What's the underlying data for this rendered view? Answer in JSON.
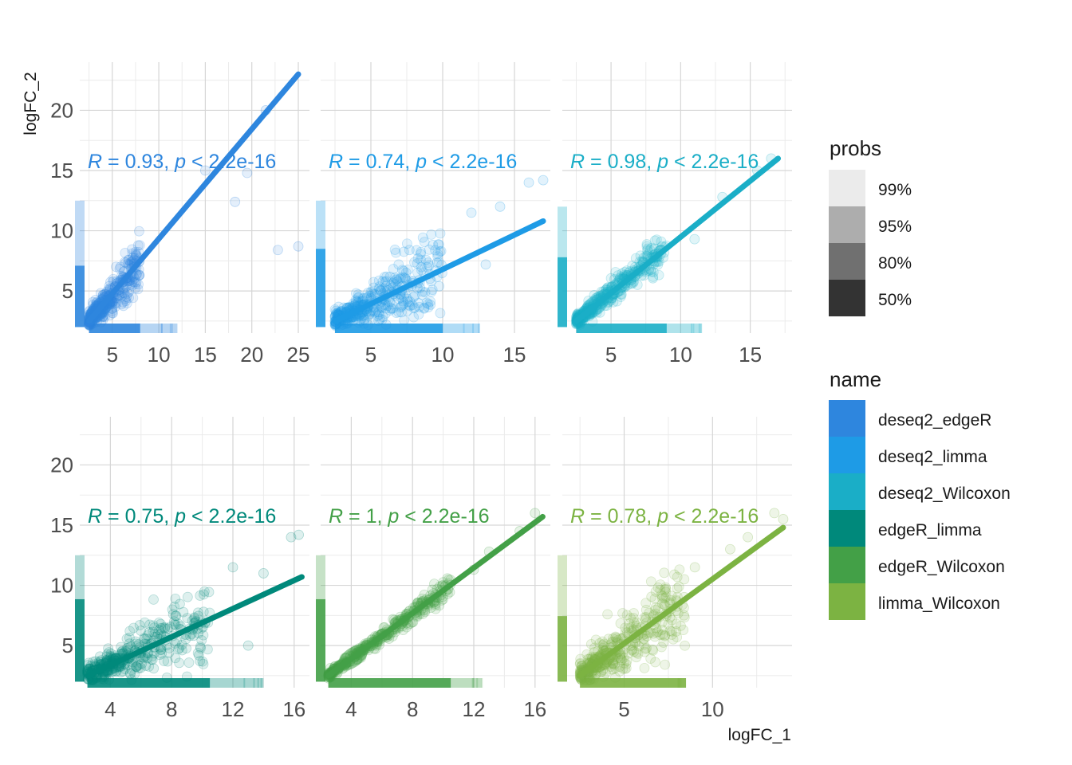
{
  "figure": {
    "x_axis_label": "logFC_1",
    "y_axis_label": "logFC_2"
  },
  "chart_data": {
    "type": "scatter",
    "facets": [
      {
        "name": "deseq2_edgeR",
        "color": "#2E86DE",
        "annotation": {
          "r_symbol": "R",
          "r_value": "0.93",
          "p_symbol": "p",
          "p_value": "2.2e-16"
        },
        "xlim": [
          1.5,
          26.2
        ],
        "ylim": [
          1.5,
          24.0
        ],
        "x_ticks": [
          5,
          10,
          15,
          20,
          25
        ],
        "y_ticks": [
          5,
          10,
          15,
          20
        ],
        "x_tick_labels": [
          "5",
          "10",
          "15",
          "20",
          "25"
        ],
        "fit_line": {
          "x": [
            2.5,
            25.0
          ],
          "y": [
            2.5,
            23.0
          ]
        },
        "cluster": {
          "x_end": 8.0,
          "slope": 0.88,
          "spread": 0.9
        },
        "outliers": [
          [
            22.8,
            8.4
          ],
          [
            25.0,
            8.7
          ],
          [
            18.2,
            12.4
          ],
          [
            19.5,
            14.8
          ],
          [
            15.0,
            15.0
          ],
          [
            21.5,
            20.0
          ]
        ],
        "x_marginal_end": 12.0,
        "y_marginal_end": 12.5
      },
      {
        "name": "deseq2_limma",
        "color": "#1E9BE6",
        "annotation": {
          "r_symbol": "R",
          "r_value": "0.74",
          "p_symbol": "p",
          "p_value": "2.2e-16"
        },
        "xlim": [
          1.5,
          17.5
        ],
        "ylim": [
          1.5,
          24.0
        ],
        "x_ticks": [
          5,
          10,
          15
        ],
        "y_ticks": [
          5,
          10,
          15,
          20
        ],
        "x_tick_labels": [
          "5",
          "10",
          "15"
        ],
        "fit_line": {
          "x": [
            2.5,
            17.0
          ],
          "y": [
            2.5,
            10.8
          ]
        },
        "cluster": {
          "x_end": 10.0,
          "slope": 0.55,
          "spread": 1.1
        },
        "outliers": [
          [
            16.0,
            14.0
          ],
          [
            17.0,
            14.2
          ],
          [
            12.0,
            11.5
          ],
          [
            14.0,
            12.0
          ],
          [
            13.0,
            7.2
          ]
        ],
        "x_marginal_end": 12.5,
        "y_marginal_end": 12.5
      },
      {
        "name": "deseq2_Wilcoxon",
        "color": "#1AAEC7",
        "annotation": {
          "r_symbol": "R",
          "r_value": "0.98",
          "p_symbol": "p",
          "p_value": "2.2e-16"
        },
        "xlim": [
          1.5,
          18.0
        ],
        "ylim": [
          1.5,
          24.0
        ],
        "x_ticks": [
          5,
          10,
          15
        ],
        "y_ticks": [
          5,
          10,
          15,
          20
        ],
        "x_tick_labels": [
          "5",
          "10",
          "15"
        ],
        "fit_line": {
          "x": [
            2.5,
            17.0
          ],
          "y": [
            2.5,
            16.0
          ]
        },
        "cluster": {
          "x_end": 9.0,
          "slope": 0.95,
          "spread": 0.5
        },
        "outliers": [
          [
            15.5,
            15.0
          ],
          [
            16.5,
            16.0
          ],
          [
            13.0,
            12.8
          ],
          [
            11.0,
            9.3
          ]
        ],
        "x_marginal_end": 11.5,
        "y_marginal_end": 12.0
      },
      {
        "name": "edgeR_limma",
        "color": "#00897B",
        "annotation": {
          "r_symbol": "R",
          "r_value": "0.75",
          "p_symbol": "p",
          "p_value": "2.2e-16"
        },
        "xlim": [
          2.0,
          17.0
        ],
        "ylim": [
          1.5,
          24.0
        ],
        "x_ticks": [
          4,
          8,
          12,
          16
        ],
        "y_ticks": [
          5,
          10,
          15,
          20
        ],
        "x_tick_labels": [
          "4",
          "8",
          "12",
          "16"
        ],
        "fit_line": {
          "x": [
            2.5,
            16.5
          ],
          "y": [
            2.5,
            10.7
          ]
        },
        "cluster": {
          "x_end": 10.5,
          "slope": 0.58,
          "spread": 1.1
        },
        "outliers": [
          [
            15.8,
            14.0
          ],
          [
            16.3,
            14.2
          ],
          [
            13.0,
            5.0
          ],
          [
            12.0,
            11.5
          ],
          [
            14.0,
            11.0
          ]
        ],
        "x_marginal_end": 14.0,
        "y_marginal_end": 12.5
      },
      {
        "name": "edgeR_Wilcoxon",
        "color": "#43A047",
        "annotation": {
          "r_symbol": "R",
          "r_value": "1",
          "p_symbol": "p",
          "p_value": "2.2e-16"
        },
        "xlim": [
          2.0,
          17.0
        ],
        "ylim": [
          1.5,
          24.0
        ],
        "x_ticks": [
          4,
          8,
          12,
          16
        ],
        "y_ticks": [
          5,
          10,
          15,
          20
        ],
        "x_tick_labels": [
          "4",
          "8",
          "12",
          "16"
        ],
        "fit_line": {
          "x": [
            2.5,
            16.5
          ],
          "y": [
            2.5,
            15.7
          ]
        },
        "cluster": {
          "x_end": 10.5,
          "slope": 0.94,
          "spread": 0.3
        },
        "outliers": [
          [
            16.0,
            16.0
          ],
          [
            15.0,
            14.5
          ],
          [
            13.0,
            12.8
          ],
          [
            12.0,
            11.3
          ]
        ],
        "x_marginal_end": 12.5,
        "y_marginal_end": 12.5
      },
      {
        "name": "limma_Wilcoxon",
        "color": "#7CB342",
        "annotation": {
          "r_symbol": "R",
          "r_value": "0.78",
          "p_symbol": "p",
          "p_value": "2.2e-16"
        },
        "xlim": [
          1.5,
          14.5
        ],
        "ylim": [
          1.5,
          24.0
        ],
        "x_ticks": [
          5,
          10
        ],
        "y_ticks": [
          5,
          10,
          15,
          20
        ],
        "x_tick_labels": [
          "5",
          "10"
        ],
        "fit_line": {
          "x": [
            2.5,
            14.0
          ],
          "y": [
            2.5,
            14.8
          ]
        },
        "cluster": {
          "x_end": 8.5,
          "slope": 1.05,
          "spread": 1.4
        },
        "outliers": [
          [
            13.5,
            16.0
          ],
          [
            14.0,
            15.5
          ],
          [
            11.0,
            13.0
          ],
          [
            12.0,
            14.0
          ],
          [
            9.0,
            11.5
          ]
        ],
        "x_marginal_end": 8.0,
        "y_marginal_end": 12.5
      }
    ],
    "legends": {
      "probs": {
        "title": "probs",
        "items": [
          {
            "label": "99%",
            "color": "#EBEBEB"
          },
          {
            "label": "95%",
            "color": "#ADADAD"
          },
          {
            "label": "80%",
            "color": "#707070"
          },
          {
            "label": "50%",
            "color": "#333333"
          }
        ]
      },
      "name": {
        "title": "name",
        "items": [
          {
            "label": "deseq2_edgeR",
            "color": "#2E86DE"
          },
          {
            "label": "deseq2_limma",
            "color": "#1E9BE6"
          },
          {
            "label": "deseq2_Wilcoxon",
            "color": "#1AAEC7"
          },
          {
            "label": "edgeR_limma",
            "color": "#00897B"
          },
          {
            "label": "edgeR_Wilcoxon",
            "color": "#43A047"
          },
          {
            "label": "limma_Wilcoxon",
            "color": "#7CB342"
          }
        ]
      }
    }
  }
}
